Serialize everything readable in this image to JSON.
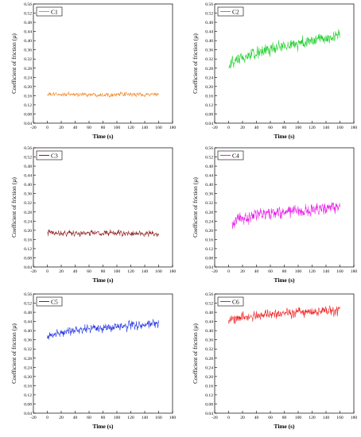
{
  "chart_data": [
    {
      "type": "line",
      "xlabel": "Time (s)",
      "ylabel": "Coefficient of friction (µ)",
      "xlim": [
        -20,
        180
      ],
      "ylim": [
        0.04,
        0.56
      ],
      "xticks": [
        "-20",
        "0",
        "20",
        "40",
        "60",
        "80",
        "100",
        "120",
        "140",
        "160",
        "180"
      ],
      "yticks": [
        "0.04",
        "0.08",
        "0.12",
        "0.16",
        "0.20",
        "0.24",
        "0.28",
        "0.32",
        "0.36",
        "0.40",
        "0.44",
        "0.48",
        "0.52",
        "0.56"
      ],
      "legend": "top-left",
      "series": [
        {
          "name": "C1",
          "color": "#f28a2e",
          "x_start": 0,
          "x_end": 160,
          "start_mean": 0.165,
          "end_mean": 0.165,
          "noise": 0.012,
          "min": 0.14,
          "max": 0.2
        }
      ]
    },
    {
      "type": "line",
      "xlabel": "Time (s)",
      "ylabel": "Coefficient of friction (µ)",
      "xlim": [
        -20,
        180
      ],
      "ylim": [
        0.04,
        0.56
      ],
      "xticks": [
        "-20",
        "0",
        "20",
        "40",
        "60",
        "80",
        "100",
        "120",
        "140",
        "160",
        "180"
      ],
      "yticks": [
        "0.04",
        "0.08",
        "0.12",
        "0.16",
        "0.20",
        "0.24",
        "0.28",
        "0.32",
        "0.36",
        "0.40",
        "0.44",
        "0.48",
        "0.52",
        "0.56"
      ],
      "legend": "top-left",
      "series": [
        {
          "name": "C2",
          "color": "#1fcf2b",
          "x_start": 0,
          "x_end": 160,
          "start_mean": 0.27,
          "end_mean": 0.42,
          "noise": 0.035,
          "min": 0.2,
          "max": 0.5
        }
      ]
    },
    {
      "type": "line",
      "xlabel": "Time (s)",
      "ylabel": "Coefficient of friction (µ)",
      "xlim": [
        -20,
        180
      ],
      "ylim": [
        0.04,
        0.56
      ],
      "xticks": [
        "-20",
        "0",
        "20",
        "40",
        "60",
        "80",
        "100",
        "120",
        "140",
        "160",
        "180"
      ],
      "yticks": [
        "0.04",
        "0.08",
        "0.12",
        "0.16",
        "0.20",
        "0.24",
        "0.28",
        "0.32",
        "0.36",
        "0.40",
        "0.44",
        "0.48",
        "0.52",
        "0.56"
      ],
      "legend": "top-left",
      "series": [
        {
          "name": "C3",
          "color": "#8b1a1a",
          "x_start": 0,
          "x_end": 160,
          "start_mean": 0.19,
          "end_mean": 0.185,
          "noise": 0.016,
          "min": 0.15,
          "max": 0.24
        }
      ]
    },
    {
      "type": "line",
      "xlabel": "Time (s)",
      "ylabel": "Coefficient of friction (µ)",
      "xlim": [
        -20,
        180
      ],
      "ylim": [
        0.04,
        0.56
      ],
      "xticks": [
        "-20",
        "0",
        "20",
        "40",
        "60",
        "80",
        "100",
        "120",
        "140",
        "160",
        "180"
      ],
      "yticks": [
        "0.04",
        "0.08",
        "0.12",
        "0.16",
        "0.20",
        "0.24",
        "0.28",
        "0.32",
        "0.36",
        "0.40",
        "0.44",
        "0.48",
        "0.52",
        "0.56"
      ],
      "legend": "top-left",
      "series": [
        {
          "name": "C4",
          "color": "#e81ce8",
          "x_start": 5,
          "x_end": 160,
          "start_mean": 0.23,
          "end_mean": 0.3,
          "noise": 0.035,
          "min": 0.15,
          "max": 0.39
        }
      ]
    },
    {
      "type": "line",
      "xlabel": "Time (s)",
      "ylabel": "Coefficient of friction (µ)",
      "xlim": [
        -20,
        180
      ],
      "ylim": [
        0.04,
        0.56
      ],
      "xticks": [
        "-20",
        "0",
        "20",
        "40",
        "60",
        "80",
        "100",
        "120",
        "140",
        "160",
        "180"
      ],
      "yticks": [
        "0.04",
        "0.08",
        "0.12",
        "0.16",
        "0.20",
        "0.24",
        "0.28",
        "0.32",
        "0.36",
        "0.40",
        "0.44",
        "0.48",
        "0.52",
        "0.56"
      ],
      "legend": "top-left",
      "series": [
        {
          "name": "C5",
          "color": "#1f2fe0",
          "x_start": 0,
          "x_end": 160,
          "start_mean": 0.37,
          "end_mean": 0.43,
          "noise": 0.025,
          "min": 0.3,
          "max": 0.5
        }
      ]
    },
    {
      "type": "line",
      "xlabel": "Time (s)",
      "ylabel": "Coefficient of friction (µ)",
      "xlim": [
        -20,
        180
      ],
      "ylim": [
        0.04,
        0.56
      ],
      "xticks": [
        "-20",
        "0",
        "20",
        "40",
        "60",
        "80",
        "100",
        "120",
        "140",
        "160",
        "180"
      ],
      "yticks": [
        "0.04",
        "0.08",
        "0.12",
        "0.16",
        "0.20",
        "0.24",
        "0.28",
        "0.32",
        "0.36",
        "0.40",
        "0.44",
        "0.48",
        "0.52",
        "0.56"
      ],
      "legend": "top-left",
      "series": [
        {
          "name": "C6",
          "color": "#ee1c1c",
          "x_start": 0,
          "x_end": 160,
          "start_mean": 0.44,
          "end_mean": 0.49,
          "noise": 0.025,
          "min": 0.36,
          "max": 0.55
        }
      ]
    }
  ]
}
